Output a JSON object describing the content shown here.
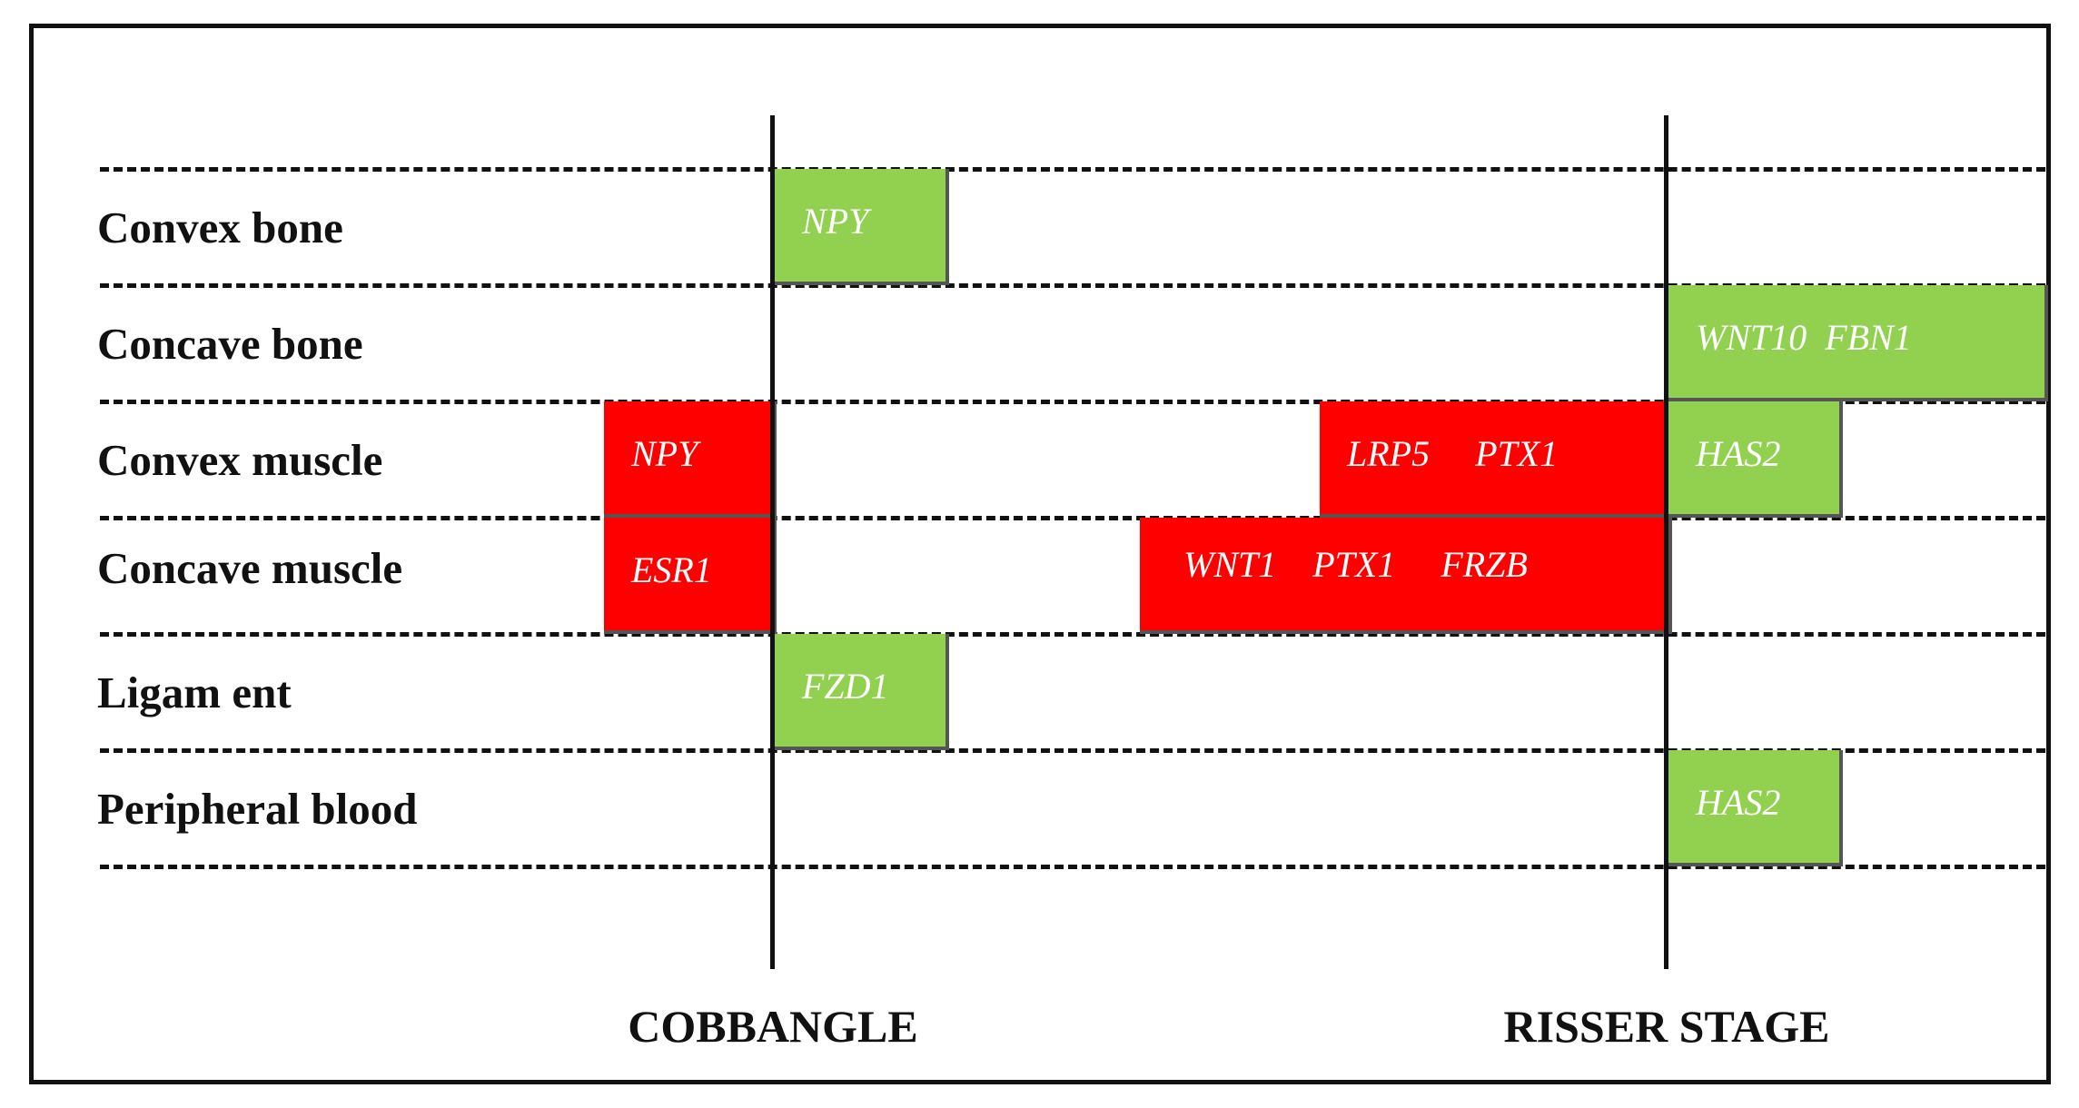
{
  "rows": [
    {
      "label": "Convex bone"
    },
    {
      "label": "Concave bone"
    },
    {
      "label": "Convex muscle"
    },
    {
      "label": "Concave muscle"
    },
    {
      "label": "Ligam ent"
    },
    {
      "label": "Peripheral blood"
    }
  ],
  "axes": [
    {
      "label": "COBBANGLE"
    },
    {
      "label": "RISSER STAGE"
    }
  ],
  "colors": {
    "positive": "#92d050",
    "negative": "#ff0000",
    "line": "#111111"
  },
  "boxes": [
    {
      "row": "Convex bone",
      "axis": "COBBANGLE",
      "color": "green",
      "text": "NPY"
    },
    {
      "row": "Concave bone",
      "axis": "RISSER STAGE",
      "color": "green",
      "text": "WNT10  FBN1"
    },
    {
      "row": "Convex muscle",
      "axis": "COBBANGLE",
      "color": "red",
      "text": "NPY"
    },
    {
      "row": "Convex muscle",
      "axis": "RISSER STAGE",
      "color": "red",
      "text": "LRP5     PTX1"
    },
    {
      "row": "Convex muscle",
      "axis": "RISSER STAGE",
      "color": "green",
      "text": "HAS2"
    },
    {
      "row": "Concave muscle",
      "axis": "COBBANGLE",
      "color": "red",
      "text": "ESR1"
    },
    {
      "row": "Concave muscle",
      "axis": "RISSER STAGE",
      "color": "red",
      "text": "WNT1    PTX1     FRZB"
    },
    {
      "row": "Ligam ent",
      "axis": "COBBANGLE",
      "color": "green",
      "text": "FZD1"
    },
    {
      "row": "Peripheral blood",
      "axis": "RISSER STAGE",
      "color": "green",
      "text": "HAS2"
    }
  ]
}
